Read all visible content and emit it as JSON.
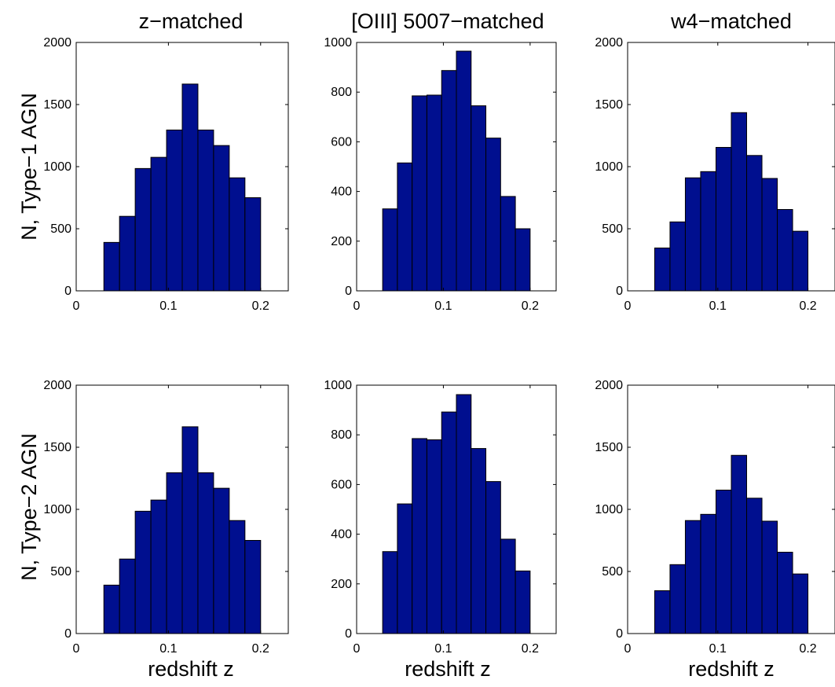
{
  "figure": {
    "column_titles": [
      "z−matched",
      "[OIII] 5007−matched",
      "w4−matched"
    ],
    "row_labels": [
      "N, Type−1 AGN",
      "N, Type−2 AGN"
    ],
    "x_axis_label": "redshift z"
  },
  "colors": {
    "bar_fill": "#000f8f",
    "bar_stroke": "#000000",
    "axes": "#000000",
    "background": "#ffffff"
  },
  "chart_data": [
    {
      "type": "bar",
      "row": 0,
      "col": 0,
      "title": "z−matched",
      "ylabel": "N, Type−1 AGN",
      "xlabel": "",
      "xlim": [
        0,
        0.23
      ],
      "ylim": [
        0,
        2000
      ],
      "xticks": [
        0,
        0.1,
        0.2
      ],
      "xtick_labels": [
        "0",
        "0.1",
        "0.2"
      ],
      "yticks": [
        0,
        500,
        1000,
        1500,
        2000
      ],
      "ytick_labels": [
        "0",
        "500",
        "1000",
        "1500",
        "2000"
      ],
      "bin_edges": [
        0.03,
        0.047,
        0.064,
        0.081,
        0.098,
        0.115,
        0.132,
        0.149,
        0.166,
        0.183,
        0.2
      ],
      "values": [
        390,
        600,
        985,
        1075,
        1295,
        1665,
        1295,
        1170,
        910,
        750
      ],
      "grid": false
    },
    {
      "type": "bar",
      "row": 0,
      "col": 1,
      "title": "[OIII] 5007−matched",
      "ylabel": "",
      "xlabel": "",
      "xlim": [
        0,
        0.23
      ],
      "ylim": [
        0,
        1000
      ],
      "xticks": [
        0,
        0.1,
        0.2
      ],
      "xtick_labels": [
        "0",
        "0.1",
        "0.2"
      ],
      "yticks": [
        0,
        200,
        400,
        600,
        800,
        1000
      ],
      "ytick_labels": [
        "0",
        "200",
        "400",
        "600",
        "800",
        "1000"
      ],
      "bin_edges": [
        0.03,
        0.047,
        0.064,
        0.081,
        0.098,
        0.115,
        0.132,
        0.149,
        0.166,
        0.183,
        0.2
      ],
      "values": [
        330,
        515,
        785,
        788,
        887,
        965,
        745,
        615,
        380,
        250
      ],
      "grid": false
    },
    {
      "type": "bar",
      "row": 0,
      "col": 2,
      "title": "w4−matched",
      "ylabel": "",
      "xlabel": "",
      "xlim": [
        0,
        0.23
      ],
      "ylim": [
        0,
        2000
      ],
      "xticks": [
        0,
        0.1,
        0.2
      ],
      "xtick_labels": [
        "0",
        "0.1",
        "0.2"
      ],
      "yticks": [
        0,
        500,
        1000,
        1500,
        2000
      ],
      "ytick_labels": [
        "0",
        "500",
        "1000",
        "1500",
        "2000"
      ],
      "bin_edges": [
        0.03,
        0.047,
        0.064,
        0.081,
        0.098,
        0.115,
        0.132,
        0.149,
        0.166,
        0.183,
        0.2
      ],
      "values": [
        345,
        555,
        910,
        960,
        1155,
        1435,
        1090,
        905,
        655,
        480
      ],
      "grid": false
    },
    {
      "type": "bar",
      "row": 1,
      "col": 0,
      "title": "",
      "ylabel": "N, Type−2 AGN",
      "xlabel": "redshift z",
      "xlim": [
        0,
        0.23
      ],
      "ylim": [
        0,
        2000
      ],
      "xticks": [
        0,
        0.1,
        0.2
      ],
      "xtick_labels": [
        "0",
        "0.1",
        "0.2"
      ],
      "yticks": [
        0,
        500,
        1000,
        1500,
        2000
      ],
      "ytick_labels": [
        "0",
        "500",
        "1000",
        "1500",
        "2000"
      ],
      "bin_edges": [
        0.03,
        0.047,
        0.064,
        0.081,
        0.098,
        0.115,
        0.132,
        0.149,
        0.166,
        0.183,
        0.2
      ],
      "values": [
        390,
        600,
        985,
        1075,
        1295,
        1665,
        1295,
        1170,
        910,
        750
      ],
      "grid": false
    },
    {
      "type": "bar",
      "row": 1,
      "col": 1,
      "title": "",
      "ylabel": "",
      "xlabel": "redshift z",
      "xlim": [
        0,
        0.23
      ],
      "ylim": [
        0,
        1000
      ],
      "xticks": [
        0,
        0.1,
        0.2
      ],
      "xtick_labels": [
        "0",
        "0.1",
        "0.2"
      ],
      "yticks": [
        0,
        200,
        400,
        600,
        800,
        1000
      ],
      "ytick_labels": [
        "0",
        "200",
        "400",
        "600",
        "800",
        "1000"
      ],
      "bin_edges": [
        0.03,
        0.047,
        0.064,
        0.081,
        0.098,
        0.115,
        0.132,
        0.149,
        0.166,
        0.183,
        0.2
      ],
      "values": [
        330,
        522,
        785,
        780,
        892,
        962,
        745,
        612,
        380,
        252
      ],
      "grid": false
    },
    {
      "type": "bar",
      "row": 1,
      "col": 2,
      "title": "",
      "ylabel": "",
      "xlabel": "redshift z",
      "xlim": [
        0,
        0.23
      ],
      "ylim": [
        0,
        2000
      ],
      "xticks": [
        0,
        0.1,
        0.2
      ],
      "xtick_labels": [
        "0",
        "0.1",
        "0.2"
      ],
      "yticks": [
        0,
        500,
        1000,
        1500,
        2000
      ],
      "ytick_labels": [
        "0",
        "500",
        "1000",
        "1500",
        "2000"
      ],
      "bin_edges": [
        0.03,
        0.047,
        0.064,
        0.081,
        0.098,
        0.115,
        0.132,
        0.149,
        0.166,
        0.183,
        0.2
      ],
      "values": [
        345,
        555,
        910,
        960,
        1155,
        1435,
        1090,
        905,
        655,
        480
      ],
      "grid": false
    }
  ]
}
